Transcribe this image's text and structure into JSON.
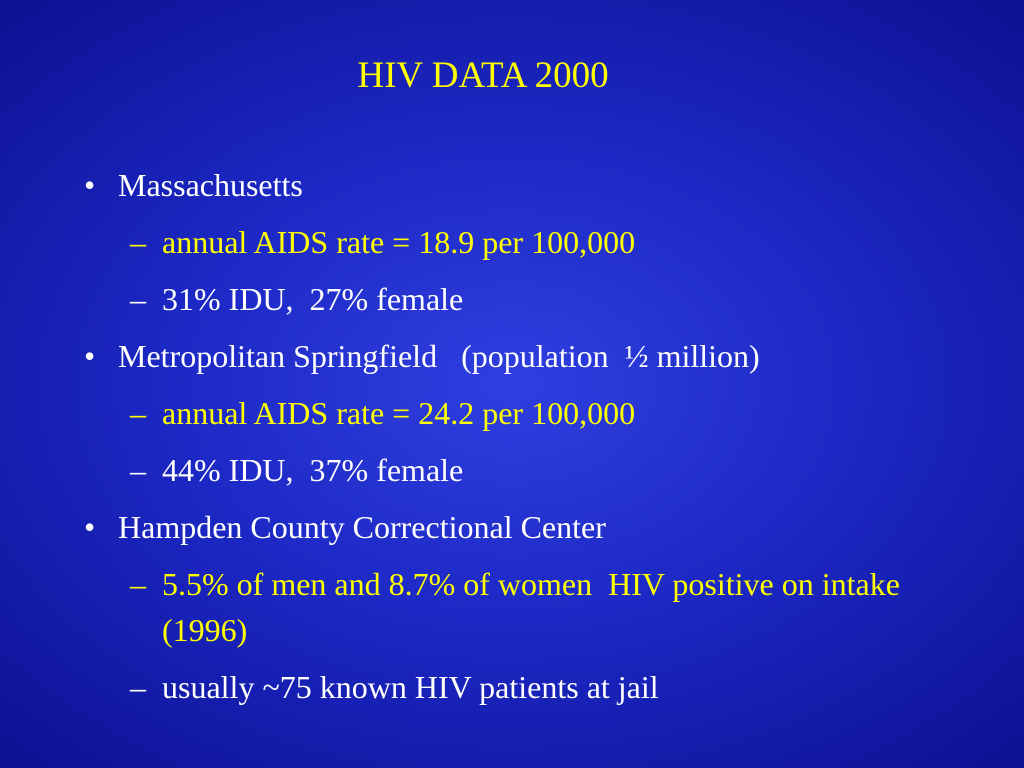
{
  "title": "HIV DATA 2000",
  "title_color": "#ffff00",
  "bullets": [
    {
      "text": "Massachusetts",
      "color": "#ffffff",
      "items": [
        {
          "text": "annual AIDS rate = 18.9 per 100,000",
          "color": "#ffff00"
        },
        {
          "text": "31% IDU,  27% female",
          "color": "#ffffff"
        }
      ]
    },
    {
      "text": "Metropolitan Springfield   (population  ½ million)",
      "color": "#ffffff",
      "items": [
        {
          "text": "annual AIDS rate = 24.2 per 100,000",
          "color": "#ffff00"
        },
        {
          "text": "44% IDU,  37% female",
          "color": "#ffffff"
        }
      ]
    },
    {
      "text": "Hampden County Correctional Center",
      "color": "#ffffff",
      "items": [
        {
          "text": "5.5% of men and 8.7% of women  HIV positive on intake (1996)",
          "color": "#ffff00"
        },
        {
          "text": "usually ~75 known HIV patients at jail",
          "color": "#ffffff"
        }
      ]
    }
  ]
}
